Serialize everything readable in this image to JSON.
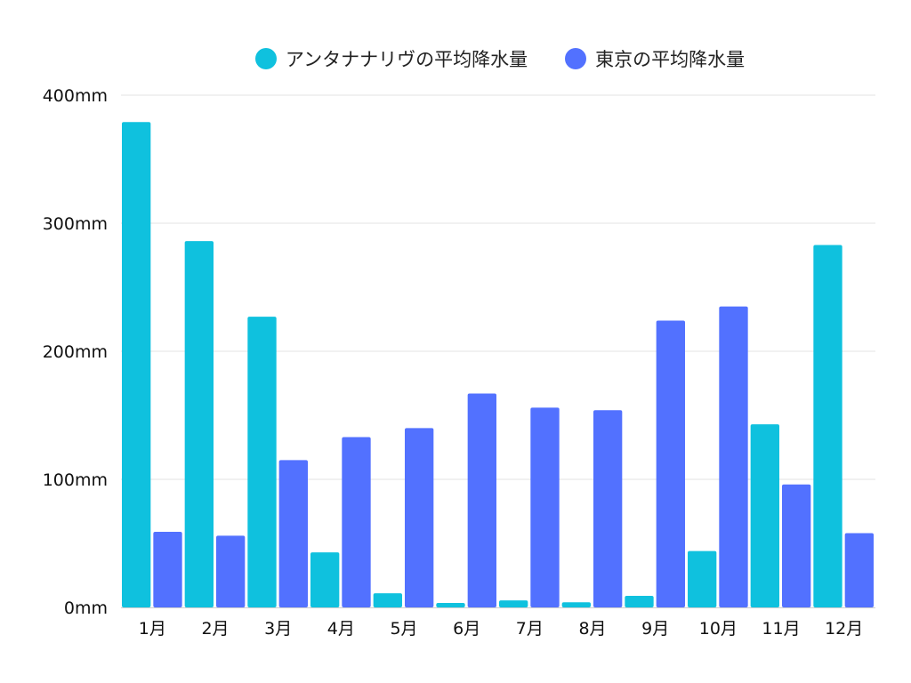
{
  "chart_data": {
    "type": "bar",
    "title": "",
    "xlabel": "",
    "ylabel": "",
    "categories": [
      "1月",
      "2月",
      "3月",
      "4月",
      "5月",
      "6月",
      "7月",
      "8月",
      "9月",
      "10月",
      "11月",
      "12月"
    ],
    "series": [
      {
        "name": "アンタナナリヴの平均降水量",
        "color": "#0fc1de",
        "values": [
          379,
          286,
          227,
          43,
          11,
          3.5,
          5.5,
          4,
          9,
          44,
          143,
          283
        ]
      },
      {
        "name": "東京の平均降水量",
        "color": "#5271ff",
        "values": [
          59,
          56,
          115,
          133,
          140,
          167,
          156,
          154,
          224,
          235,
          96,
          58
        ]
      }
    ],
    "ylim": [
      0,
      400
    ],
    "yticks": [
      0,
      100,
      200,
      300,
      400
    ],
    "ytick_suffix": "mm",
    "grid": true,
    "legend_position": "top"
  }
}
